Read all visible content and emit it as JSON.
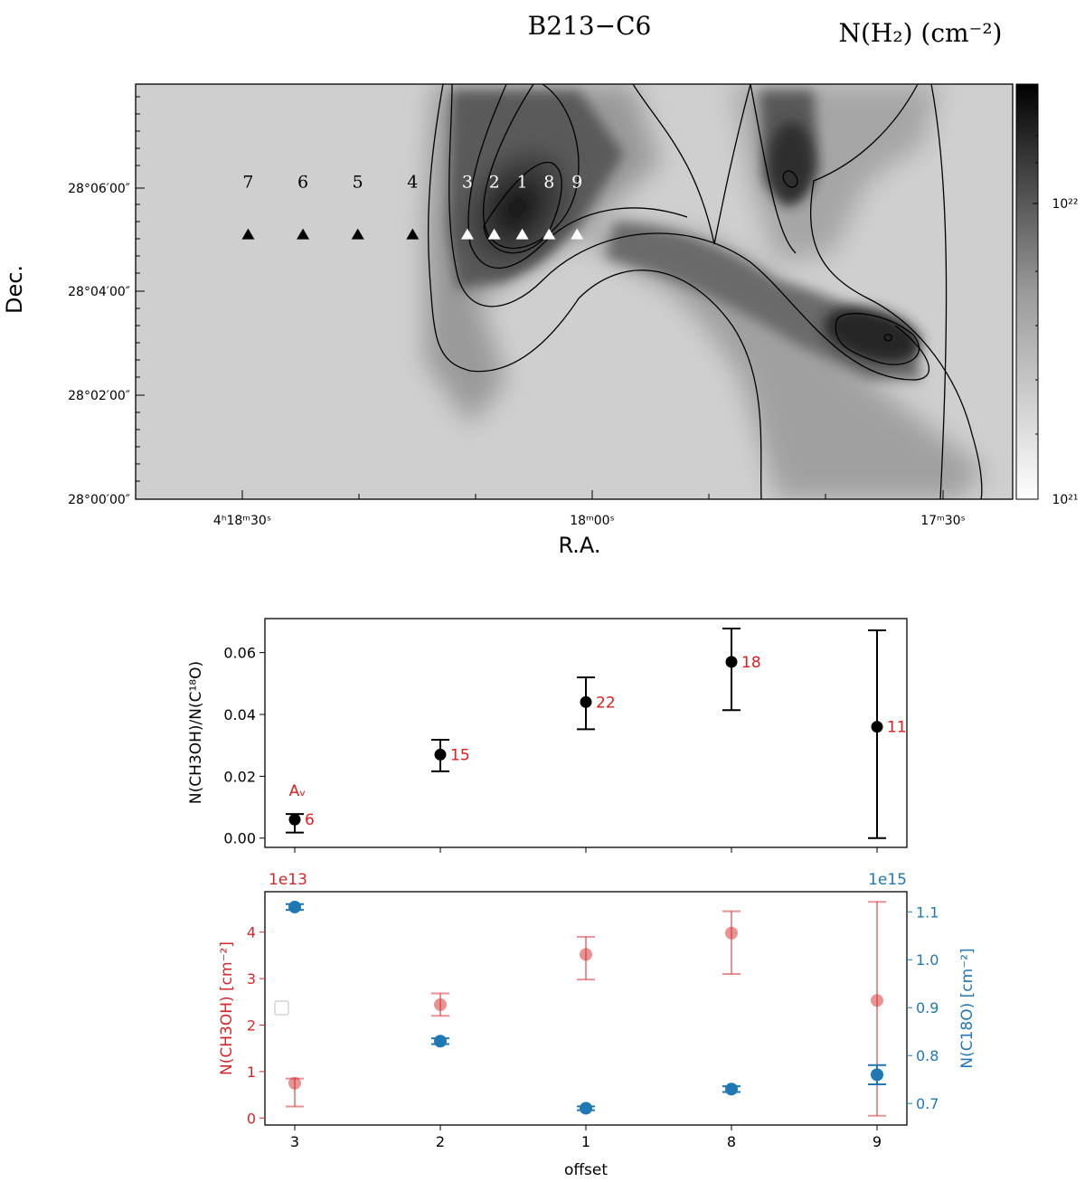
{
  "chart_data": [
    {
      "type": "heatmap",
      "title": "B213−C6",
      "colorbar_label": "N(H₂) (cm⁻²)",
      "colorbar_ticks": [
        "10²²",
        "10²¹"
      ],
      "xlabel": "R.A.",
      "ylabel": "Dec.",
      "x_ticks": [
        "4ʰ18ᵐ30ˢ",
        "18ᵐ00ˢ",
        "17ᵐ30ˢ"
      ],
      "y_ticks": [
        "28°06′00″",
        "28°04′00″",
        "28°02′00″",
        "28°00′00″"
      ],
      "colormap": "greys",
      "positions": [
        {
          "label": "7",
          "ra_offset_s": 29.5,
          "dec_arcmin": 5.1,
          "color": "#000000"
        },
        {
          "label": "6",
          "ra_offset_s": 24.8,
          "dec_arcmin": 5.1,
          "color": "#000000"
        },
        {
          "label": "5",
          "ra_offset_s": 20.1,
          "dec_arcmin": 5.1,
          "color": "#000000"
        },
        {
          "label": "4",
          "ra_offset_s": 15.4,
          "dec_arcmin": 5.1,
          "color": "#000000"
        },
        {
          "label": "3",
          "ra_offset_s": 10.7,
          "dec_arcmin": 5.1,
          "color": "#ffffff"
        },
        {
          "label": "2",
          "ra_offset_s": 8.4,
          "dec_arcmin": 5.1,
          "color": "#ffffff"
        },
        {
          "label": "1",
          "ra_offset_s": 6.0,
          "dec_arcmin": 5.1,
          "color": "#ffffff"
        },
        {
          "label": "8",
          "ra_offset_s": 3.7,
          "dec_arcmin": 5.1,
          "color": "#ffffff"
        },
        {
          "label": "9",
          "ra_offset_s": 1.3,
          "dec_arcmin": 5.1,
          "color": "#ffffff"
        }
      ]
    },
    {
      "type": "scatter",
      "ylabel": "N(CH3OH)/N(C¹⁸O)",
      "categories": [
        "3",
        "2",
        "1",
        "8",
        "9"
      ],
      "ylim": [
        -0.003,
        0.071
      ],
      "yticks": [
        "0.00",
        "0.02",
        "0.04",
        "0.06"
      ],
      "values": [
        0.006,
        0.027,
        0.044,
        0.057,
        0.036
      ],
      "err_low": [
        0.0018,
        0.0216,
        0.0352,
        0.0414,
        0.0
      ],
      "err_high": [
        0.0078,
        0.0318,
        0.052,
        0.0678,
        0.0672
      ],
      "av_labels": [
        "6",
        "15",
        "22",
        "18",
        "11"
      ],
      "av_title": "Aᵥ",
      "marker_color": "#000000",
      "label_color": "#e41a1c"
    },
    {
      "type": "scatter",
      "xlabel": "offset",
      "categories": [
        "3",
        "2",
        "1",
        "8",
        "9"
      ],
      "series": [
        {
          "name": "N(CH3OH) [cm⁻²]",
          "axis": "left",
          "color": "#d62728",
          "multiplier_label": "1e13",
          "ylim": [
            -0.15,
            4.87
          ],
          "yticks": [
            "0",
            "1",
            "2",
            "3",
            "4"
          ],
          "values": [
            0.75,
            2.44,
            3.52,
            3.98,
            2.53
          ],
          "err_low": [
            0.25,
            2.2,
            2.98,
            3.1,
            0.05
          ],
          "err_high": [
            0.85,
            2.68,
            3.9,
            4.45,
            4.65
          ]
        },
        {
          "name": "N(C18O) [cm⁻²]",
          "axis": "right",
          "color": "#1f77b4",
          "multiplier_label": "1e15",
          "ylim": [
            0.655,
            1.142
          ],
          "yticks": [
            "0.7",
            "0.8",
            "0.9",
            "1.0",
            "1.1"
          ],
          "values": [
            1.11,
            0.83,
            0.69,
            0.73,
            0.76
          ],
          "err_low": [
            1.104,
            0.824,
            0.686,
            0.724,
            0.74
          ],
          "err_high": [
            1.116,
            0.836,
            0.694,
            0.736,
            0.78
          ]
        }
      ]
    }
  ]
}
